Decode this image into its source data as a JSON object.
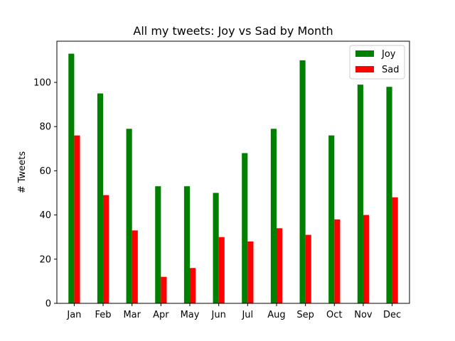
{
  "chart_data": {
    "type": "bar",
    "title": "All my tweets: Joy vs Sad by Month",
    "xlabel": "",
    "ylabel": "# Tweets",
    "categories": [
      "Jan",
      "Feb",
      "Mar",
      "Apr",
      "May",
      "Jun",
      "Jul",
      "Aug",
      "Sep",
      "Oct",
      "Nov",
      "Dec"
    ],
    "series": [
      {
        "name": "Joy",
        "color": "#008000",
        "values": [
          113,
          95,
          79,
          53,
          53,
          50,
          68,
          79,
          110,
          76,
          99,
          98
        ]
      },
      {
        "name": "Sad",
        "color": "#ff0000",
        "values": [
          76,
          49,
          33,
          12,
          16,
          30,
          28,
          34,
          31,
          38,
          40,
          48
        ]
      }
    ],
    "ylim": [
      0,
      118.65
    ],
    "yticks": [
      0,
      20,
      40,
      60,
      80,
      100
    ],
    "grid": false,
    "legend_position": "top-right"
  }
}
